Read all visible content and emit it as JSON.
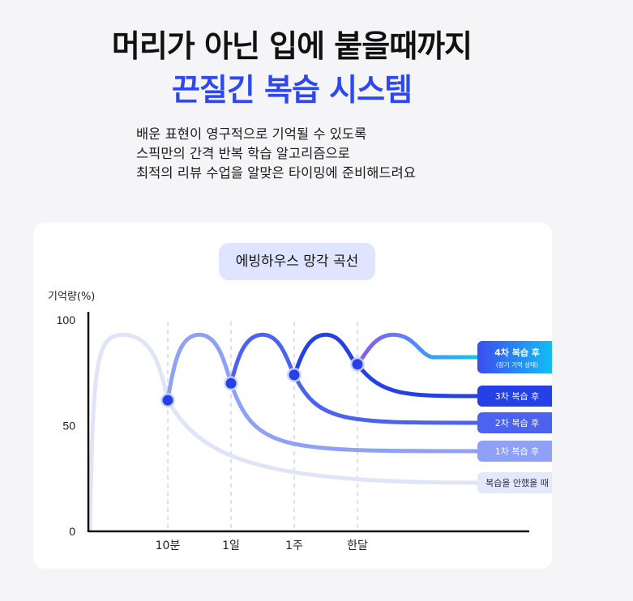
{
  "header": {
    "line1": "머리가 아닌 입에 붙을때까지",
    "line2": "끈질긴 복습 시스템"
  },
  "description": [
    "배운 표현이 영구적으로 기억될 수 있도록",
    "스픽만의 간격 반복 학습 알고리즘으로",
    "최적의 리뷰 수업을 알맞은 타이밍에 준비해드려요"
  ],
  "colors": {
    "accent": "#2d48f0",
    "never": "#dfe4f8",
    "review1": "#8ea1f7",
    "review2": "#4b63ee",
    "review3": "#2540e6",
    "review4_start": "#8c56f0",
    "review4_end": "#11c5f5"
  },
  "chart_data": {
    "type": "line",
    "title": "에빙하우스 망각 곡선",
    "ylabel": "기억량(%)",
    "xlabel": "",
    "yticks": [
      100,
      50,
      0
    ],
    "ylim": [
      0,
      100
    ],
    "x_tick_labels": [
      "10분",
      "1일",
      "1주",
      "한달"
    ],
    "review_points": [
      {
        "at": "10분",
        "value": 62
      },
      {
        "at": "1일",
        "value": 70
      },
      {
        "at": "1주",
        "value": 74
      },
      {
        "at": "한달",
        "value": 79
      }
    ],
    "series": [
      {
        "name": "복습을 안했을 때",
        "peak": 93,
        "end_value": 23
      },
      {
        "name": "1차 복습 후",
        "start_value": 62,
        "peak": 93,
        "end_value": 38
      },
      {
        "name": "2차 복습 후",
        "start_value": 70,
        "peak": 93,
        "end_value": 53
      },
      {
        "name": "3차 복습 후",
        "start_value": 74,
        "peak": 93,
        "end_value": 65
      },
      {
        "name": "4차 복습 후",
        "sublabel": "(장기 기억 상태)",
        "start_value": 79,
        "peak": 93,
        "end_value": 79
      }
    ],
    "grid": "vertical dashed at review points",
    "legend": "right, at end of each curve"
  }
}
